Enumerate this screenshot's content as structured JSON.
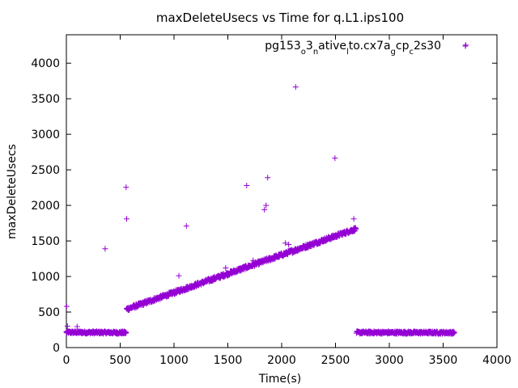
{
  "chart_data": {
    "type": "scatter",
    "title": "maxDeleteUsecs vs Time for q.L1.ips100",
    "xlabel": "Time(s)",
    "ylabel": "maxDeleteUsecs",
    "xlim": [
      0,
      4000
    ],
    "ylim": [
      0,
      4400
    ],
    "xticks": [
      0,
      500,
      1000,
      1500,
      2000,
      2500,
      3000,
      3500,
      4000
    ],
    "yticks": [
      0,
      500,
      1000,
      1500,
      2000,
      2500,
      3000,
      3500,
      4000
    ],
    "grid": false,
    "legend_position": "top-right",
    "marker": "plus",
    "color": "#9400d3",
    "series": [
      {
        "name_parts": [
          [
            "pg153",
            false
          ],
          [
            "o",
            true
          ],
          [
            "3",
            false
          ],
          [
            "n",
            true
          ],
          [
            "ative",
            false
          ],
          [
            "l",
            true
          ],
          [
            "to.cx7a",
            false
          ],
          [
            "g",
            true
          ],
          [
            "cp",
            false
          ],
          [
            "c",
            true
          ],
          [
            "2s30",
            false
          ]
        ],
        "segments": [
          {
            "x_start": 0,
            "x_end": 555,
            "y_start": 215,
            "y_end": 210,
            "spread": 35
          },
          {
            "x_start": 560,
            "x_end": 2690,
            "y_start": 540,
            "y_end": 1670,
            "spread": 50
          },
          {
            "x_start": 2695,
            "x_end": 3605,
            "y_start": 212,
            "y_end": 210,
            "spread": 35
          }
        ],
        "outliers": [
          {
            "x": 3,
            "y": 580
          },
          {
            "x": 10,
            "y": 300
          },
          {
            "x": 100,
            "y": 295
          },
          {
            "x": 360,
            "y": 1390
          },
          {
            "x": 555,
            "y": 2255
          },
          {
            "x": 560,
            "y": 1810
          },
          {
            "x": 1045,
            "y": 1010
          },
          {
            "x": 1115,
            "y": 1710
          },
          {
            "x": 1480,
            "y": 1120
          },
          {
            "x": 1675,
            "y": 2280
          },
          {
            "x": 1735,
            "y": 1225
          },
          {
            "x": 1840,
            "y": 1940
          },
          {
            "x": 1855,
            "y": 2000
          },
          {
            "x": 1870,
            "y": 2390
          },
          {
            "x": 2035,
            "y": 1470
          },
          {
            "x": 2065,
            "y": 1450
          },
          {
            "x": 2130,
            "y": 3665
          },
          {
            "x": 2495,
            "y": 2665
          },
          {
            "x": 2670,
            "y": 1810
          },
          {
            "x": 3710,
            "y": 4255
          }
        ]
      }
    ]
  }
}
